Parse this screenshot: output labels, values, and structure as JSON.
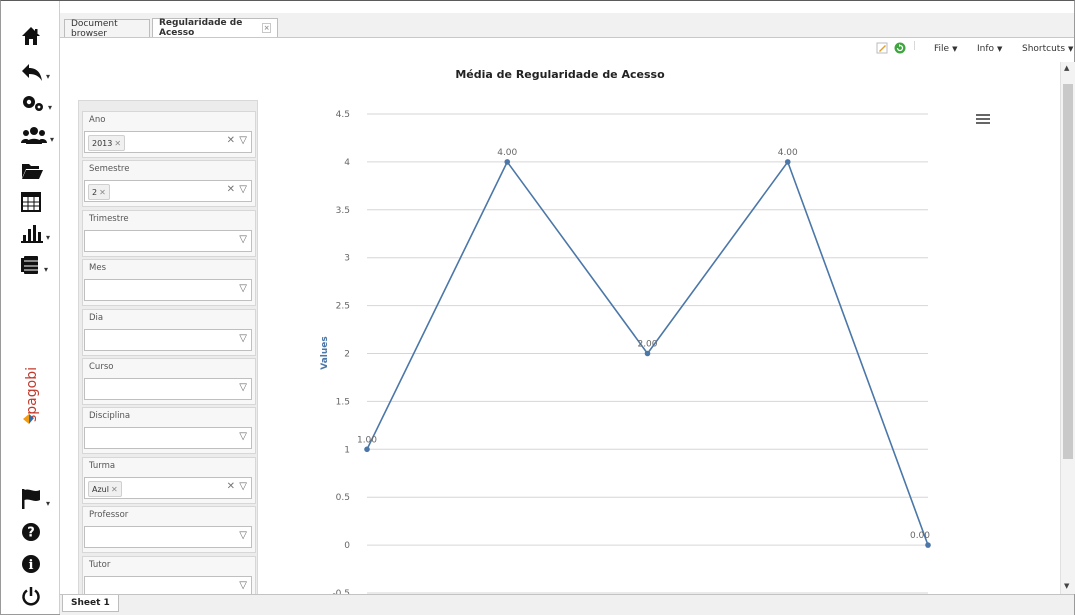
{
  "tabs": [
    {
      "label": "Document browser",
      "active": false
    },
    {
      "label": "Regularidade de Acesso",
      "active": true
    }
  ],
  "tab_close_glyph": "×",
  "toolbar": {
    "icons": [
      "edit-icon",
      "refresh-icon"
    ],
    "menus": [
      "File",
      "Info",
      "Shortcuts"
    ]
  },
  "sidebar": {
    "icons": [
      "home-icon",
      "back-icon",
      "settings-icon",
      "users-icon",
      "folder-icon",
      "table-icon",
      "bar-chart-icon",
      "database-icon",
      "flag-icon",
      "help-icon",
      "info-icon",
      "power-icon"
    ],
    "logo": "spagobi"
  },
  "filters": [
    {
      "label": "Ano",
      "value": "2013",
      "has_clear": true
    },
    {
      "label": "Semestre",
      "value": "2",
      "has_clear": true
    },
    {
      "label": "Trimestre",
      "value": "",
      "has_clear": false
    },
    {
      "label": "Mes",
      "value": "",
      "has_clear": false
    },
    {
      "label": "Dia",
      "value": "",
      "has_clear": false
    },
    {
      "label": "Curso",
      "value": "",
      "has_clear": false
    },
    {
      "label": "Disciplina",
      "value": "",
      "has_clear": false
    },
    {
      "label": "Turma",
      "value": "Azul",
      "has_clear": true
    },
    {
      "label": "Professor",
      "value": "",
      "has_clear": false
    },
    {
      "label": "Tutor",
      "value": "",
      "has_clear": false
    }
  ],
  "chart_data": {
    "type": "line",
    "title": "Média de Regularidade de Acesso",
    "ylabel": "Values",
    "xlabel": "",
    "y_ticks": [
      "4.5",
      "4",
      "3.5",
      "3",
      "2.5",
      "2",
      "1.5",
      "1",
      "0.5",
      "0",
      "-0.5"
    ],
    "ylim": [
      -0.5,
      4.5
    ],
    "series": [
      {
        "values": [
          1,
          4,
          2,
          4,
          0
        ],
        "labels": [
          "1.00",
          "4.00",
          "2.00",
          "4.00",
          "0.00"
        ]
      }
    ],
    "grid": true,
    "legend": "none",
    "color": "#4b77a8"
  },
  "sheet_tabs": [
    "Sheet 1"
  ],
  "colors": {
    "line": "#4b77a8",
    "grid": "#d6d6d6"
  }
}
